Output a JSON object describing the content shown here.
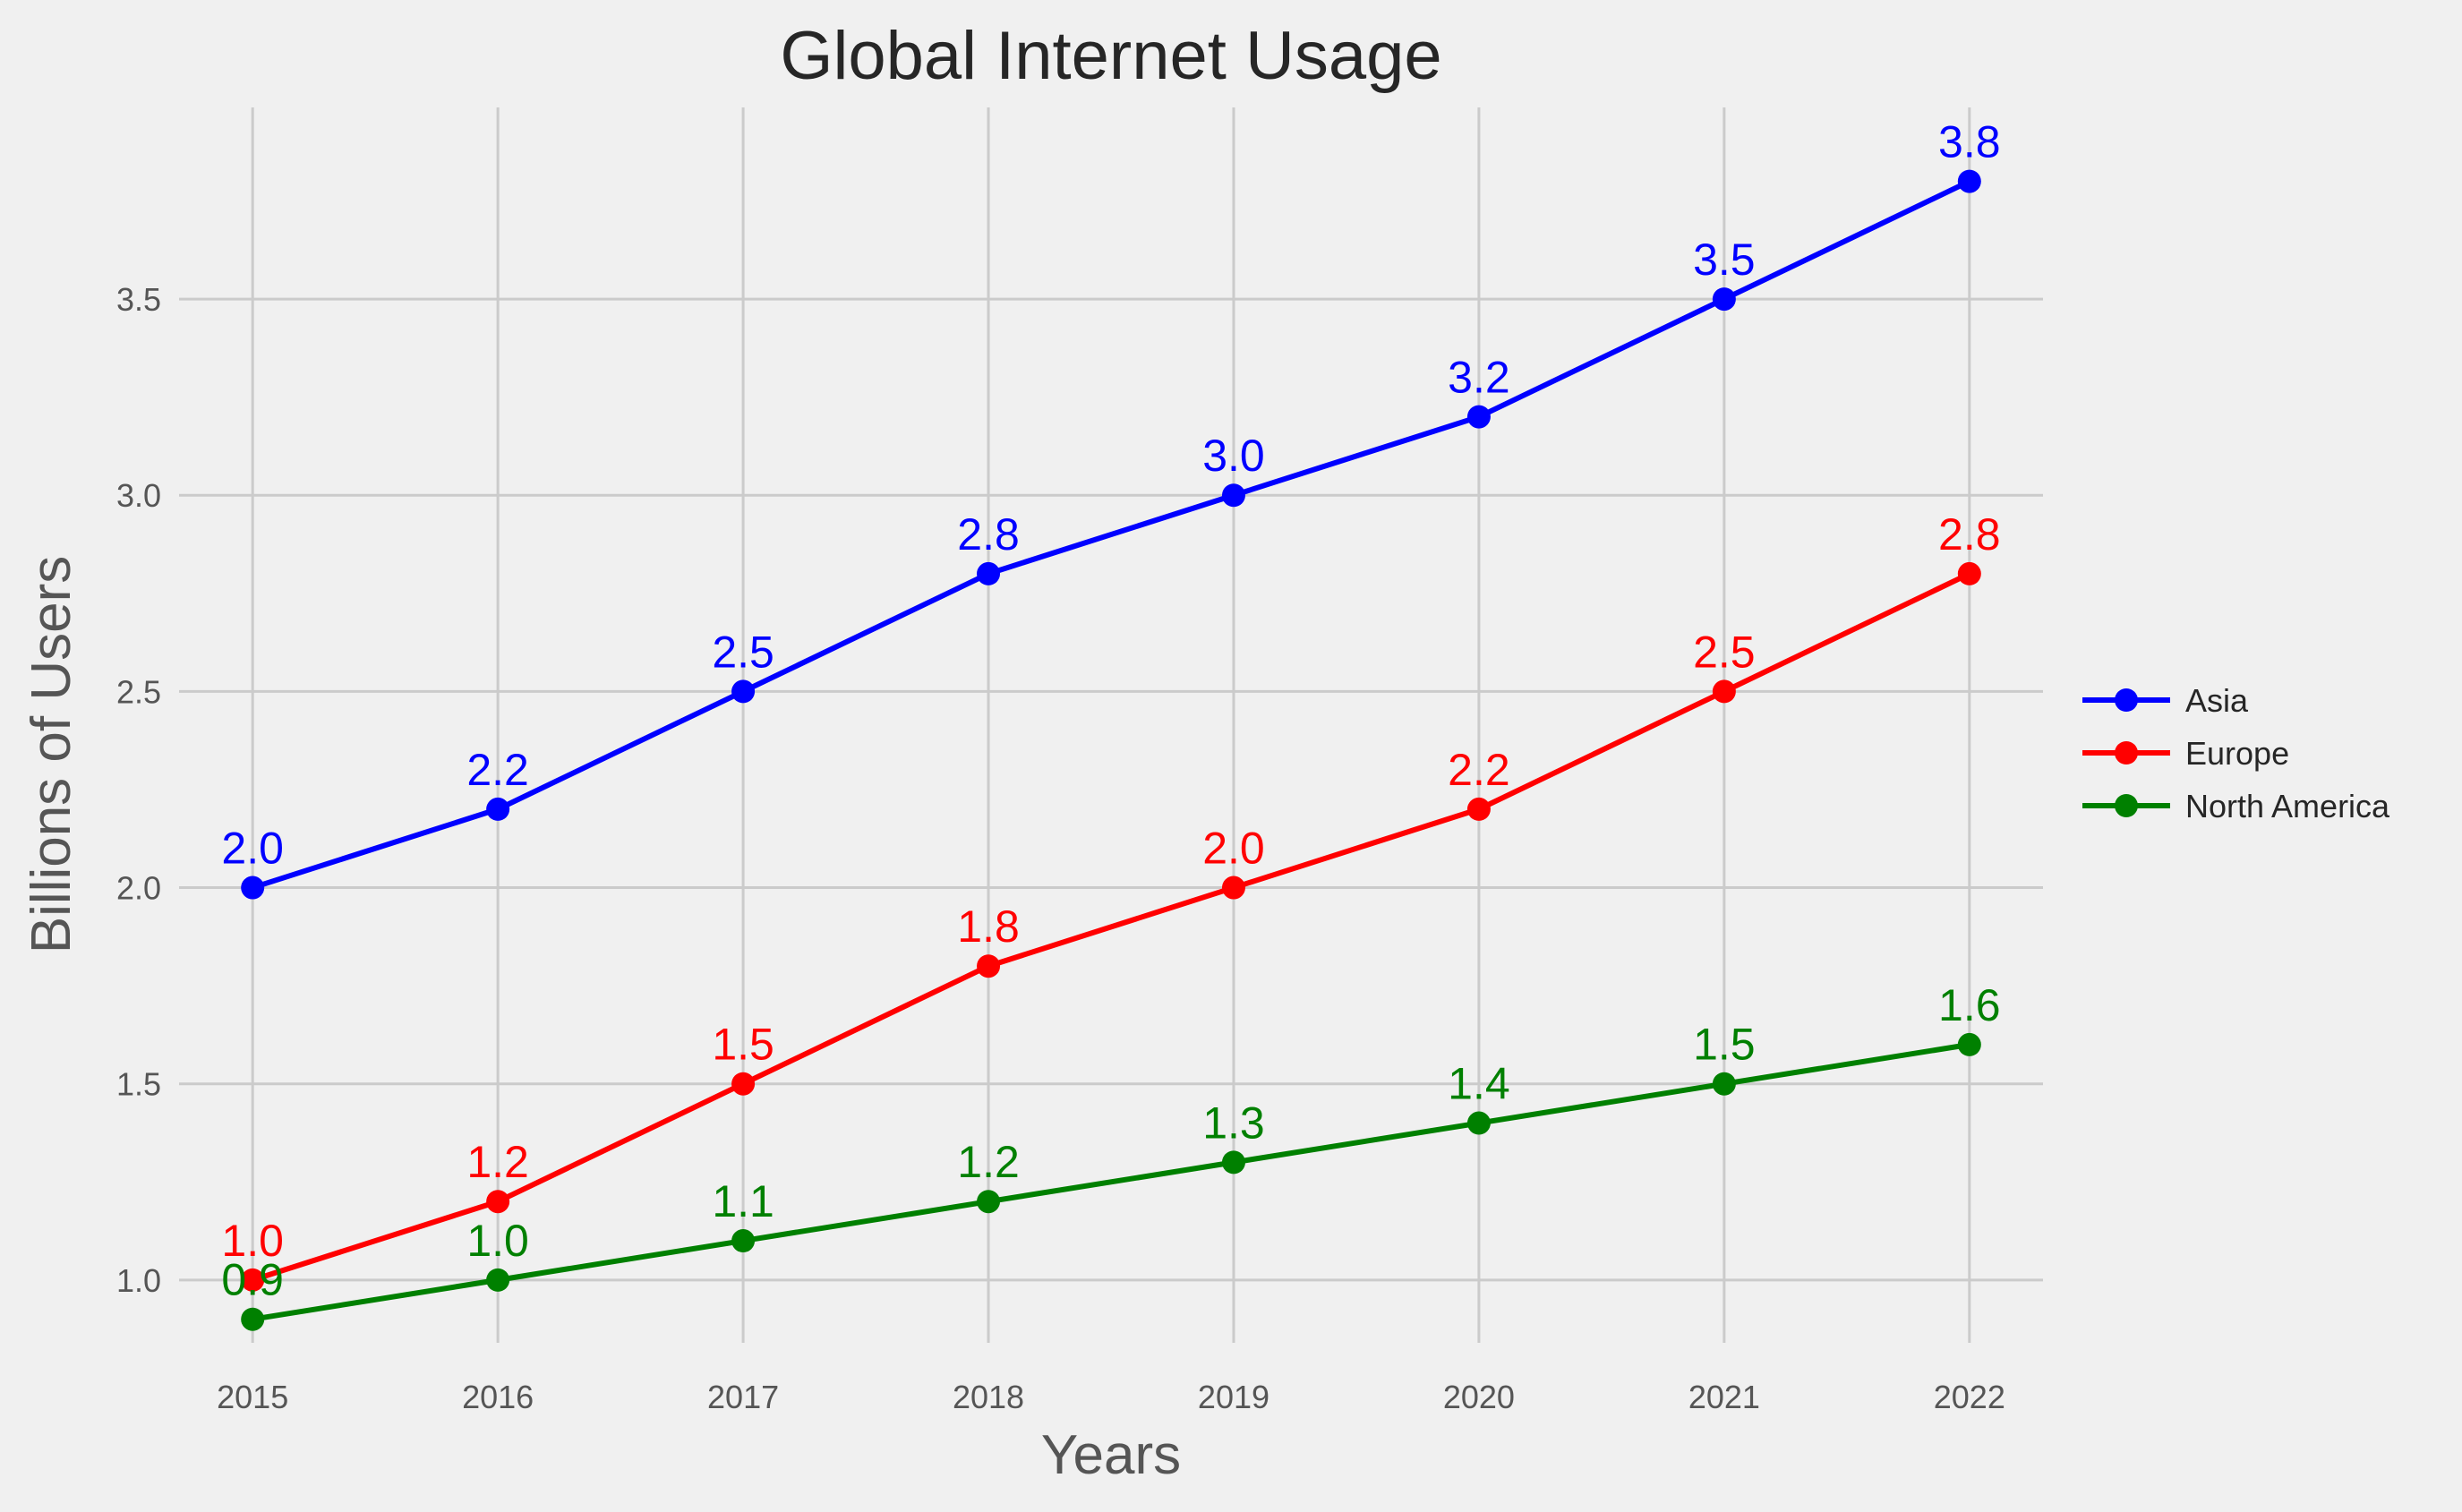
{
  "chart_data": {
    "type": "line",
    "title": "Global Internet Usage",
    "xlabel": "Years",
    "ylabel": "Billions of Users",
    "x": [
      2015,
      2016,
      2017,
      2018,
      2019,
      2020,
      2021,
      2022
    ],
    "xticks": [
      "2015",
      "2016",
      "2017",
      "2018",
      "2019",
      "2020",
      "2021",
      "2022"
    ],
    "yticks": [
      "1.0",
      "1.5",
      "2.0",
      "2.5",
      "3.0",
      "3.5"
    ],
    "ytick_values": [
      1.0,
      1.5,
      2.0,
      2.5,
      3.0,
      3.5
    ],
    "xlim": [
      2014.7,
      2022.3
    ],
    "ylim": [
      0.84,
      3.92
    ],
    "grid": true,
    "legend_position": "right",
    "series": [
      {
        "name": "Asia",
        "color": "#0000ff",
        "values": [
          2.0,
          2.2,
          2.5,
          2.8,
          3.0,
          3.2,
          3.5,
          3.8
        ],
        "labels": [
          "2.0",
          "2.2",
          "2.5",
          "2.8",
          "3.0",
          "3.2",
          "3.5",
          "3.8"
        ]
      },
      {
        "name": "Europe",
        "color": "#ff0000",
        "values": [
          1.0,
          1.2,
          1.5,
          1.8,
          2.0,
          2.2,
          2.5,
          2.8
        ],
        "labels": [
          "1.0",
          "1.2",
          "1.5",
          "1.8",
          "2.0",
          "2.2",
          "2.5",
          "2.8"
        ]
      },
      {
        "name": "North America",
        "color": "#008000",
        "values": [
          0.9,
          1.0,
          1.1,
          1.2,
          1.3,
          1.4,
          1.5,
          1.6
        ],
        "labels": [
          "0.9",
          "1.0",
          "1.1",
          "1.2",
          "1.3",
          "1.4",
          "1.5",
          "1.6"
        ]
      }
    ]
  }
}
